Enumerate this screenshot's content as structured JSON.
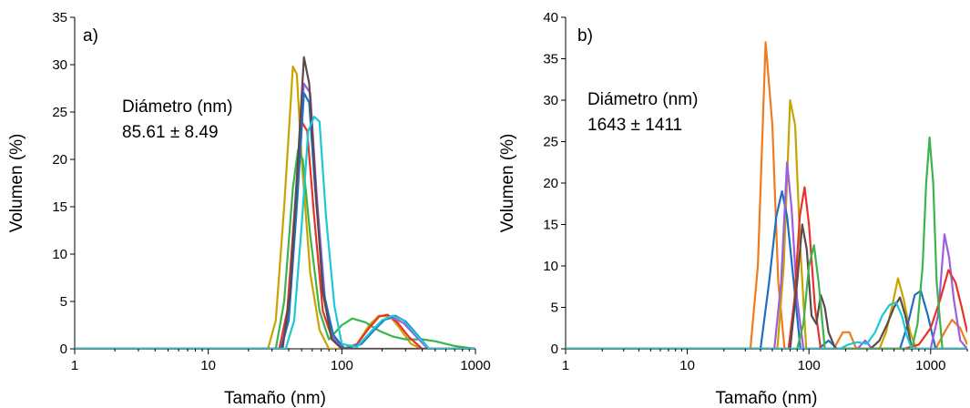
{
  "chart_data": [
    {
      "type": "line",
      "panel_label": "a)",
      "xlabel": "Tamaño (nm)",
      "ylabel": "Volumen (%)",
      "x_scale": "log",
      "xlim": [
        1,
        1000
      ],
      "ylim": [
        0,
        35
      ],
      "x_ticks": [
        1,
        10,
        100,
        1000
      ],
      "x_tick_labels": [
        "1",
        "10",
        "100",
        "1000"
      ],
      "y_ticks": [
        0,
        5,
        10,
        15,
        20,
        25,
        30,
        35
      ],
      "y_tick_labels": [
        "0",
        "5",
        "10",
        "15",
        "20",
        "25",
        "30",
        "35"
      ],
      "grid": false,
      "annotation": [
        "Diámetro (nm)",
        "85.61 ± 8.49"
      ],
      "series": [
        {
          "color": "#C9A400",
          "x": [
            1,
            28,
            32,
            37,
            43,
            46,
            50,
            58,
            68,
            80,
            100,
            130,
            160,
            190,
            230,
            270,
            330,
            400,
            1000
          ],
          "y": [
            0,
            0,
            3,
            15,
            29.8,
            29,
            20,
            8,
            2,
            0,
            0,
            0.5,
            2.5,
            3.5,
            3.4,
            2.2,
            0.5,
            0,
            0
          ]
        },
        {
          "color": "#3CB44B",
          "x": [
            1,
            32,
            37,
            43,
            47,
            51,
            58,
            68,
            80,
            100,
            120,
            150,
            190,
            240,
            300,
            400,
            500,
            700,
            1000
          ],
          "y": [
            0,
            0,
            5,
            17,
            21,
            20,
            12,
            4,
            1,
            2.5,
            3.2,
            2.8,
            1.9,
            1.3,
            1.0,
            1.0,
            0.8,
            0.3,
            0
          ]
        },
        {
          "color": "#E6332A",
          "x": [
            1,
            34,
            39,
            45,
            50,
            55,
            62,
            72,
            85,
            105,
            130,
            160,
            190,
            220,
            260,
            320,
            400,
            1000
          ],
          "y": [
            0,
            0,
            4,
            16,
            24,
            23,
            14,
            4,
            1,
            0,
            0.5,
            2.2,
            3.4,
            3.6,
            2.8,
            1.2,
            0,
            0
          ]
        },
        {
          "color": "#9B5FE0",
          "x": [
            1,
            35,
            40,
            46,
            52,
            58,
            65,
            75,
            88,
            105,
            140,
            170,
            200,
            240,
            290,
            360,
            440,
            1000
          ],
          "y": [
            0,
            0,
            4,
            18,
            28,
            27,
            16,
            5,
            1,
            0,
            0.6,
            2.0,
            3.0,
            3.3,
            2.7,
            1.3,
            0,
            0
          ]
        },
        {
          "color": "#1F6FC5",
          "x": [
            1,
            35,
            40,
            46,
            52,
            57,
            63,
            73,
            86,
            105,
            140,
            175,
            210,
            250,
            300,
            370,
            450,
            1000
          ],
          "y": [
            0,
            0,
            3,
            15,
            27,
            26,
            17,
            6,
            1.5,
            0,
            0.5,
            2.0,
            3.1,
            3.5,
            2.9,
            1.4,
            0,
            0
          ]
        },
        {
          "color": "#5A4A4A",
          "x": [
            1,
            36,
            41,
            47,
            52,
            57,
            63,
            72,
            84,
            100,
            1000
          ],
          "y": [
            0,
            0,
            6,
            20,
            30.8,
            28,
            18,
            6,
            1,
            0,
            0
          ]
        },
        {
          "color": "#1CC8D4",
          "x": [
            1,
            38,
            44,
            50,
            56,
            62,
            68,
            76,
            88,
            100,
            130,
            165,
            200,
            240,
            290,
            360,
            450,
            1000
          ],
          "y": [
            0,
            0,
            3,
            13,
            23,
            24.5,
            24,
            14,
            4.5,
            0.5,
            0.2,
            1.8,
            3.0,
            3.5,
            3.0,
            1.5,
            0,
            0
          ]
        }
      ]
    },
    {
      "type": "line",
      "panel_label": "b)",
      "xlabel": "Tamaño (nm)",
      "ylabel": "Volumen (%)",
      "x_scale": "log",
      "xlim": [
        1,
        2000
      ],
      "ylim": [
        0,
        40
      ],
      "x_ticks": [
        1,
        10,
        100,
        1000
      ],
      "x_tick_labels": [
        "1",
        "10",
        "100",
        "1000"
      ],
      "y_ticks": [
        0,
        5,
        10,
        15,
        20,
        25,
        30,
        35,
        40
      ],
      "y_tick_labels": [
        "0",
        "5",
        "10",
        "15",
        "20",
        "25",
        "30",
        "35",
        "40"
      ],
      "grid": false,
      "annotation": [
        "Diámetro (nm)",
        "1643 ± 1411"
      ],
      "series": [
        {
          "color": "#F07B1E",
          "x": [
            1,
            33,
            38,
            44,
            50,
            56,
            63,
            72,
            160,
            190,
            215,
            245,
            1100,
            1300,
            1500,
            1750,
            2000
          ],
          "y": [
            0,
            0,
            10,
            37,
            27,
            8,
            0,
            0,
            0,
            2,
            2,
            0,
            0,
            2,
            3.5,
            2.5,
            0.5
          ]
        },
        {
          "color": "#C9A400",
          "x": [
            1,
            55,
            62,
            70,
            77,
            85,
            95,
            380,
            430,
            480,
            540,
            600,
            680,
            760,
            2000
          ],
          "y": [
            0,
            0,
            10,
            30,
            27,
            12,
            0,
            0,
            2,
            5,
            8.5,
            6,
            2,
            0,
            0
          ]
        },
        {
          "color": "#1F6FC5",
          "x": [
            1,
            40,
            47,
            54,
            60,
            66,
            75,
            85,
            120,
            145,
            170,
            560,
            650,
            740,
            830,
            950,
            1100,
            2000
          ],
          "y": [
            0,
            0,
            8,
            16,
            19,
            16,
            8,
            0,
            0,
            1.0,
            0,
            0,
            3,
            6.5,
            7,
            4,
            0,
            0
          ]
        },
        {
          "color": "#9B5FE0",
          "x": [
            1,
            52,
            59,
            66,
            72,
            80,
            90,
            250,
            290,
            330,
            1000,
            1150,
            1300,
            1420,
            1550,
            1750,
            2000
          ],
          "y": [
            0,
            0,
            8,
            22.5,
            17,
            6,
            0,
            0,
            1,
            0,
            0,
            4,
            13.8,
            11,
            6,
            1,
            0
          ]
        },
        {
          "color": "#E6332A",
          "x": [
            1,
            68,
            76,
            84,
            92,
            100,
            112,
            125,
            600,
            800,
            1000,
            1200,
            1400,
            1600,
            1800,
            2000
          ],
          "y": [
            0,
            0,
            6,
            16,
            19.5,
            15,
            5,
            0,
            0,
            0.5,
            2.5,
            6,
            9.5,
            8,
            5,
            2
          ]
        },
        {
          "color": "#5A4A4A",
          "x": [
            1,
            70,
            80,
            88,
            96,
            105,
            115,
            125,
            135,
            145,
            165,
            320,
            380,
            440,
            500,
            560,
            620,
            700,
            2000
          ],
          "y": [
            0,
            0,
            8,
            15,
            12,
            4,
            3,
            6.5,
            5,
            2,
            0,
            0,
            1,
            3,
            5,
            6.2,
            4,
            0,
            0
          ]
        },
        {
          "color": "#3CB44B",
          "x": [
            1,
            80,
            90,
            100,
            110,
            120,
            135,
            600,
            700,
            780,
            860,
            920,
            980,
            1050,
            1120,
            1250,
            2000
          ],
          "y": [
            0,
            0,
            3,
            10,
            12.5,
            8,
            0,
            0,
            0,
            3,
            10,
            20,
            25.5,
            20,
            8,
            0,
            0
          ]
        },
        {
          "color": "#1CC8D4",
          "x": [
            1,
            180,
            210,
            250,
            300,
            350,
            400,
            460,
            520,
            580,
            640,
            700,
            2000
          ],
          "y": [
            0,
            0,
            0.5,
            0.8,
            0.6,
            2,
            4,
            5.3,
            5.6,
            4,
            1.5,
            0,
            0
          ]
        }
      ]
    }
  ]
}
